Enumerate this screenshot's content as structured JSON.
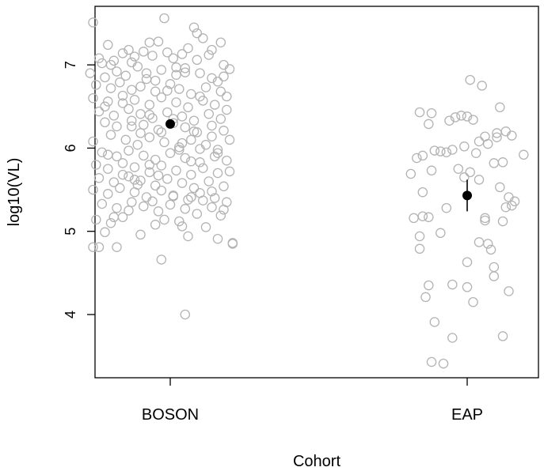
{
  "chart_data": {
    "type": "scatter",
    "xlabel": "Cohort",
    "ylabel": "log10(VL)",
    "categories": [
      "BOSON",
      "EAP"
    ],
    "ylim": [
      3.35,
      7.65
    ],
    "yticks": [
      4,
      5,
      6,
      7
    ],
    "grid": false,
    "legend": "none",
    "colors": {
      "points": "#b3b3b3",
      "summary": "#000000"
    },
    "summary": [
      {
        "category": "BOSON",
        "mean": 6.29,
        "lower": 6.24,
        "upper": 6.34
      },
      {
        "category": "EAP",
        "mean": 5.43,
        "lower": 5.24,
        "upper": 5.62
      }
    ],
    "series": [
      {
        "category": "BOSON",
        "points": [
          [
            0.74,
            7.51
          ],
          [
            0.98,
            7.56
          ],
          [
            1.08,
            7.45
          ],
          [
            1.09,
            7.38
          ],
          [
            0.79,
            7.24
          ],
          [
            0.93,
            7.27
          ],
          [
            0.96,
            7.28
          ],
          [
            1.11,
            7.32
          ],
          [
            0.76,
            7.08
          ],
          [
            0.77,
            7.02
          ],
          [
            0.81,
            7.05
          ],
          [
            0.84,
            7.14
          ],
          [
            0.86,
            7.18
          ],
          [
            0.88,
            7.1
          ],
          [
            0.91,
            7.16
          ],
          [
            0.94,
            7.11
          ],
          [
            0.99,
            7.15
          ],
          [
            1.01,
            7.08
          ],
          [
            1.04,
            7.13
          ],
          [
            1.06,
            7.2
          ],
          [
            1.13,
            7.12
          ],
          [
            1.18,
            7.0
          ],
          [
            1.2,
            6.95
          ],
          [
            1.18,
            6.86
          ],
          [
            0.73,
            6.9
          ],
          [
            0.78,
            6.85
          ],
          [
            0.82,
            6.92
          ],
          [
            0.85,
            6.87
          ],
          [
            0.89,
            6.98
          ],
          [
            0.92,
            6.9
          ],
          [
            0.97,
            6.94
          ],
          [
            1.02,
            6.88
          ],
          [
            1.05,
            6.96
          ],
          [
            1.1,
            6.9
          ],
          [
            1.14,
            6.84
          ],
          [
            1.16,
            6.8
          ],
          [
            0.75,
            6.76
          ],
          [
            0.8,
            6.72
          ],
          [
            0.83,
            6.79
          ],
          [
            0.87,
            6.7
          ],
          [
            0.9,
            6.74
          ],
          [
            0.95,
            6.68
          ],
          [
            1.0,
            6.77
          ],
          [
            1.03,
            6.71
          ],
          [
            1.07,
            6.65
          ],
          [
            1.12,
            6.73
          ],
          [
            1.17,
            6.68
          ],
          [
            1.19,
            6.62
          ],
          [
            0.74,
            6.6
          ],
          [
            0.79,
            6.56
          ],
          [
            0.84,
            6.63
          ],
          [
            0.88,
            6.58
          ],
          [
            0.93,
            6.52
          ],
          [
            0.97,
            6.61
          ],
          [
            1.02,
            6.55
          ],
          [
            1.06,
            6.49
          ],
          [
            1.11,
            6.57
          ],
          [
            1.15,
            6.52
          ],
          [
            1.19,
            6.46
          ],
          [
            0.76,
            6.44
          ],
          [
            0.81,
            6.39
          ],
          [
            0.86,
            6.47
          ],
          [
            0.9,
            6.41
          ],
          [
            0.94,
            6.36
          ],
          [
            0.99,
            6.43
          ],
          [
            1.04,
            6.38
          ],
          [
            1.08,
            6.33
          ],
          [
            1.13,
            6.41
          ],
          [
            1.17,
            6.35
          ],
          [
            0.78,
            6.31
          ],
          [
            0.82,
            6.26
          ],
          [
            0.87,
            6.33
          ],
          [
            0.91,
            6.28
          ],
          [
            0.96,
            6.22
          ],
          [
            1.01,
            6.3
          ],
          [
            1.05,
            6.25
          ],
          [
            1.09,
            6.19
          ],
          [
            1.14,
            6.27
          ],
          [
            1.18,
            6.21
          ],
          [
            0.74,
            6.08
          ],
          [
            0.8,
            6.16
          ],
          [
            0.85,
            6.1
          ],
          [
            0.89,
            6.04
          ],
          [
            0.93,
            6.13
          ],
          [
            0.98,
            6.07
          ],
          [
            1.03,
            6.01
          ],
          [
            1.07,
            6.1
          ],
          [
            1.12,
            6.04
          ],
          [
            1.16,
            5.98
          ],
          [
            0.77,
            5.95
          ],
          [
            0.82,
            5.9
          ],
          [
            0.86,
            5.97
          ],
          [
            0.91,
            5.91
          ],
          [
            0.95,
            5.86
          ],
          [
            1.0,
            5.94
          ],
          [
            1.05,
            5.88
          ],
          [
            1.1,
            5.83
          ],
          [
            1.15,
            5.9
          ],
          [
            1.19,
            5.85
          ],
          [
            0.75,
            5.8
          ],
          [
            0.79,
            5.75
          ],
          [
            0.84,
            5.82
          ],
          [
            0.88,
            5.77
          ],
          [
            0.93,
            5.71
          ],
          [
            0.97,
            5.79
          ],
          [
            1.02,
            5.73
          ],
          [
            1.07,
            5.68
          ],
          [
            1.11,
            5.76
          ],
          [
            1.16,
            5.7
          ],
          [
            0.76,
            5.64
          ],
          [
            0.81,
            5.59
          ],
          [
            0.86,
            5.66
          ],
          [
            0.9,
            5.61
          ],
          [
            0.95,
            5.55
          ],
          [
            0.99,
            5.63
          ],
          [
            1.04,
            5.58
          ],
          [
            1.08,
            5.52
          ],
          [
            1.13,
            5.6
          ],
          [
            1.18,
            5.54
          ],
          [
            0.74,
            5.5
          ],
          [
            0.79,
            5.45
          ],
          [
            0.83,
            5.52
          ],
          [
            0.88,
            5.47
          ],
          [
            0.92,
            5.41
          ],
          [
            0.97,
            5.49
          ],
          [
            1.01,
            5.43
          ],
          [
            1.06,
            5.38
          ],
          [
            1.1,
            5.46
          ],
          [
            1.15,
            5.4
          ],
          [
            1.19,
            5.35
          ],
          [
            0.77,
            5.33
          ],
          [
            0.82,
            5.28
          ],
          [
            0.87,
            5.35
          ],
          [
            0.91,
            5.3
          ],
          [
            0.96,
            5.24
          ],
          [
            1.0,
            5.32
          ],
          [
            1.05,
            5.27
          ],
          [
            1.09,
            5.21
          ],
          [
            1.14,
            5.29
          ],
          [
            1.17,
            5.19
          ],
          [
            0.75,
            5.14
          ],
          [
            0.8,
            5.1
          ],
          [
            0.84,
            5.17
          ],
          [
            0.95,
            5.08
          ],
          [
            1.03,
            5.12
          ],
          [
            1.12,
            5.05
          ],
          [
            0.78,
            4.99
          ],
          [
            0.9,
            4.96
          ],
          [
            1.06,
            4.94
          ],
          [
            1.16,
            4.91
          ],
          [
            0.74,
            4.81
          ],
          [
            0.76,
            4.81
          ],
          [
            0.82,
            4.81
          ],
          [
            1.21,
            4.86
          ],
          [
            1.21,
            4.85
          ],
          [
            0.97,
            4.66
          ],
          [
            1.05,
            4.0
          ],
          [
            0.8,
            7.0
          ],
          [
            0.87,
            7.03
          ],
          [
            0.92,
            6.83
          ],
          [
            0.95,
            6.81
          ],
          [
            0.99,
            6.69
          ],
          [
            1.02,
            6.97
          ],
          [
            1.05,
            6.91
          ],
          [
            1.09,
            7.06
          ],
          [
            1.1,
            6.62
          ],
          [
            1.14,
            7.18
          ],
          [
            1.17,
            7.27
          ],
          [
            0.78,
            6.5
          ],
          [
            0.84,
            6.54
          ],
          [
            0.87,
            6.26
          ],
          [
            0.9,
            6.18
          ],
          [
            0.93,
            6.4
          ],
          [
            0.97,
            6.19
          ],
          [
            1.01,
            6.35
          ],
          [
            1.04,
            6.06
          ],
          [
            1.08,
            6.2
          ],
          [
            1.1,
            5.99
          ],
          [
            1.14,
            6.14
          ],
          [
            1.16,
            5.94
          ],
          [
            1.2,
            6.1
          ],
          [
            0.79,
            5.92
          ],
          [
            0.84,
            5.68
          ],
          [
            0.88,
            5.62
          ],
          [
            0.93,
            5.8
          ],
          [
            0.96,
            5.67
          ],
          [
            1.01,
            5.42
          ],
          [
            1.03,
            5.98
          ],
          [
            1.07,
            5.84
          ],
          [
            1.11,
            5.37
          ],
          [
            1.14,
            5.48
          ],
          [
            1.18,
            5.26
          ],
          [
            1.2,
            5.72
          ],
          [
            0.81,
            5.17
          ],
          [
            0.86,
            5.25
          ],
          [
            0.89,
            5.56
          ],
          [
            0.94,
            5.36
          ],
          [
            0.98,
            5.14
          ],
          [
            1.04,
            5.06
          ],
          [
            1.07,
            5.41
          ]
        ]
      },
      {
        "category": "EAP",
        "points": [
          [
            2.01,
            6.82
          ],
          [
            2.05,
            6.75
          ],
          [
            1.84,
            6.43
          ],
          [
            1.88,
            6.42
          ],
          [
            1.94,
            6.33
          ],
          [
            1.96,
            6.37
          ],
          [
            1.98,
            6.39
          ],
          [
            2.0,
            6.38
          ],
          [
            2.02,
            6.34
          ],
          [
            2.11,
            6.49
          ],
          [
            1.87,
            6.29
          ],
          [
            2.06,
            6.14
          ],
          [
            2.1,
            6.18
          ],
          [
            2.13,
            6.2
          ],
          [
            2.15,
            6.15
          ],
          [
            2.1,
            6.13
          ],
          [
            1.85,
            5.91
          ],
          [
            1.83,
            5.88
          ],
          [
            1.89,
            5.97
          ],
          [
            1.91,
            5.96
          ],
          [
            1.93,
            5.95
          ],
          [
            1.95,
            5.98
          ],
          [
            1.99,
            6.02
          ],
          [
            2.03,
            5.94
          ],
          [
            2.04,
            6.08
          ],
          [
            2.07,
            6.05
          ],
          [
            2.09,
            5.82
          ],
          [
            2.12,
            5.83
          ],
          [
            2.19,
            5.92
          ],
          [
            1.81,
            5.69
          ],
          [
            1.88,
            5.73
          ],
          [
            1.97,
            5.75
          ],
          [
            1.99,
            5.65
          ],
          [
            2.01,
            5.71
          ],
          [
            2.04,
            5.62
          ],
          [
            2.11,
            5.53
          ],
          [
            2.14,
            5.41
          ],
          [
            2.16,
            5.36
          ],
          [
            2.15,
            5.31
          ],
          [
            1.85,
            5.47
          ],
          [
            1.93,
            5.28
          ],
          [
            1.82,
            5.16
          ],
          [
            1.85,
            5.18
          ],
          [
            1.87,
            5.17
          ],
          [
            2.06,
            5.16
          ],
          [
            2.06,
            5.13
          ],
          [
            2.12,
            5.12
          ],
          [
            2.13,
            5.29
          ],
          [
            1.84,
            4.94
          ],
          [
            1.84,
            4.79
          ],
          [
            1.91,
            4.98
          ],
          [
            2.04,
            4.87
          ],
          [
            2.07,
            4.85
          ],
          [
            2.08,
            4.78
          ],
          [
            2.09,
            4.57
          ],
          [
            2.09,
            4.46
          ],
          [
            2.0,
            4.63
          ],
          [
            1.87,
            4.35
          ],
          [
            1.86,
            4.21
          ],
          [
            1.95,
            4.36
          ],
          [
            2.0,
            4.33
          ],
          [
            2.02,
            4.15
          ],
          [
            2.14,
            4.28
          ],
          [
            1.89,
            3.91
          ],
          [
            1.95,
            3.72
          ],
          [
            2.12,
            3.74
          ],
          [
            1.88,
            3.43
          ],
          [
            1.92,
            3.41
          ]
        ]
      }
    ]
  }
}
